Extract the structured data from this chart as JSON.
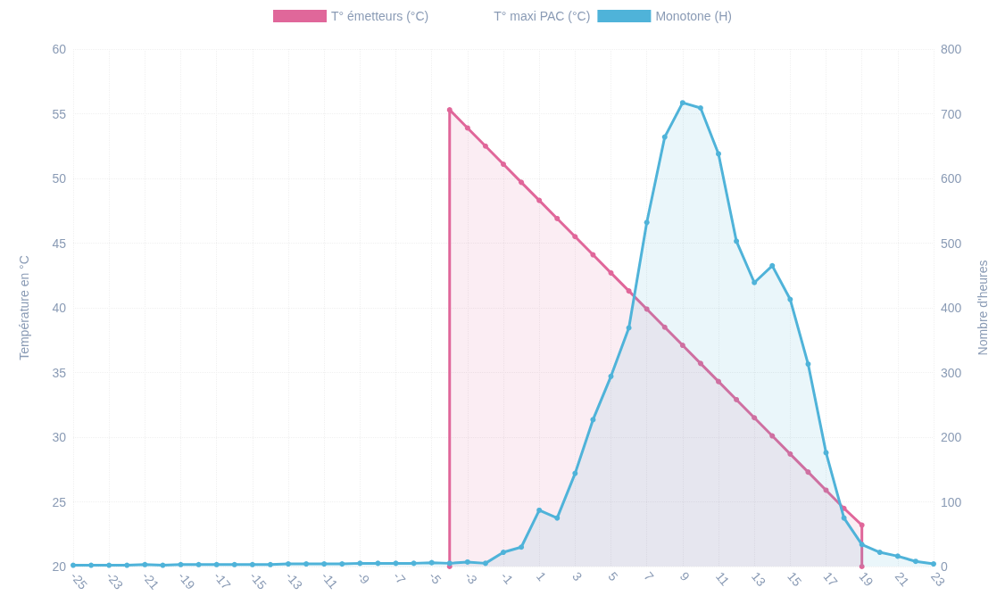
{
  "chart_data": {
    "type": "area",
    "ylabel": "Température en °C",
    "y2label": "Nombre d'heures",
    "xlim": [
      -25,
      23
    ],
    "xticks": [
      -25,
      -23,
      -21,
      -19,
      -17,
      -15,
      -13,
      -11,
      -9,
      -7,
      -5,
      -3,
      -1,
      1,
      3,
      5,
      7,
      9,
      11,
      13,
      15,
      17,
      19,
      21,
      23
    ],
    "ylim": [
      20,
      60
    ],
    "yticks": [
      20,
      25,
      30,
      35,
      40,
      45,
      50,
      55,
      60
    ],
    "y2lim": [
      0,
      800
    ],
    "y2ticks": [
      0,
      100,
      200,
      300,
      400,
      500,
      600,
      700,
      800
    ],
    "grid": true,
    "legend": "top",
    "marker": "circle",
    "line_style": "solid",
    "series": [
      {
        "name": "T° émetteurs (°C)",
        "color": "#e0679a",
        "x": [
          -4,
          -4,
          -3,
          -2,
          -1,
          0,
          1,
          2,
          3,
          4,
          5,
          6,
          7,
          8,
          9,
          10,
          11,
          12,
          13,
          14,
          15,
          16,
          17,
          18,
          19,
          19
        ],
        "values": [
          20,
          55.3,
          53.9,
          52.5,
          51.1,
          49.7,
          48.3,
          46.9,
          45.5,
          44.1,
          42.7,
          41.3,
          39.9,
          38.5,
          37.1,
          35.7,
          34.3,
          32.9,
          31.5,
          30.1,
          28.7,
          27.3,
          25.9,
          24.5,
          23.2,
          20
        ]
      },
      {
        "name": "T° maxi PAC (°C)"
      },
      {
        "name": "Monotone (H)",
        "color": "#4fb3d9",
        "axis": "y2",
        "x": [
          -25,
          -24,
          -23,
          -22,
          -21,
          -20,
          -19,
          -18,
          -17,
          -16,
          -15,
          -14,
          -13,
          -12,
          -11,
          -10,
          -9,
          -8,
          -7,
          -6,
          -5,
          -4,
          -3,
          -2,
          -1,
          0,
          1,
          2,
          3,
          4,
          5,
          6,
          7,
          8,
          9,
          10,
          11,
          12,
          13,
          14,
          15,
          16,
          17,
          18,
          19,
          20,
          21,
          22,
          23
        ],
        "values": [
          2,
          2,
          2,
          2,
          3,
          2,
          3,
          3,
          3,
          3,
          3,
          3,
          4,
          4,
          4,
          4,
          5,
          5,
          5,
          5,
          6,
          5,
          7,
          5,
          22,
          30,
          87,
          75,
          144,
          227,
          294,
          369,
          532,
          664,
          717,
          709,
          638,
          503,
          439,
          465,
          413,
          313,
          176,
          75,
          34,
          22,
          16,
          8,
          4
        ]
      }
    ]
  }
}
